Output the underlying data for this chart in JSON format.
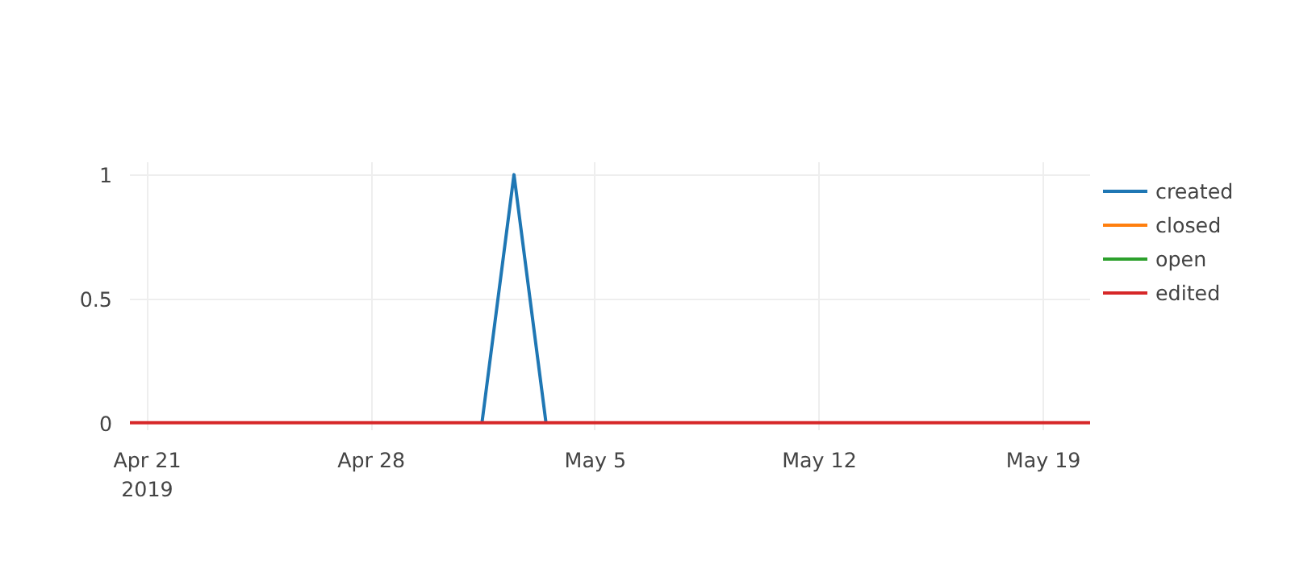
{
  "chart_data": {
    "type": "line",
    "x": [
      "2019-04-20T11:00",
      "2019-04-21T11:00",
      "2019-04-22T11:00",
      "2019-04-23T11:00",
      "2019-04-24T11:00",
      "2019-04-25T11:00",
      "2019-04-26T11:00",
      "2019-04-27T11:00",
      "2019-04-28T11:00",
      "2019-04-29T11:00",
      "2019-04-30T11:00",
      "2019-05-01T11:00",
      "2019-05-02T11:00",
      "2019-05-03T11:00",
      "2019-05-04T11:00",
      "2019-05-05T11:00",
      "2019-05-06T11:00",
      "2019-05-07T11:00",
      "2019-05-08T11:00",
      "2019-05-09T11:00",
      "2019-05-10T11:00",
      "2019-05-11T11:00",
      "2019-05-12T11:00",
      "2019-05-13T11:00",
      "2019-05-14T11:00",
      "2019-05-15T11:00",
      "2019-05-16T11:00",
      "2019-05-17T11:00",
      "2019-05-18T11:00",
      "2019-05-19T11:00",
      "2019-05-20T11:00"
    ],
    "series": [
      {
        "name": "created",
        "color": "#1f77b4",
        "values": [
          null,
          null,
          null,
          null,
          null,
          null,
          null,
          null,
          null,
          null,
          null,
          0,
          1,
          0,
          null,
          null,
          null,
          null,
          null,
          null,
          null,
          null,
          null,
          null,
          null,
          null,
          null,
          null,
          null,
          null,
          null
        ]
      },
      {
        "name": "closed",
        "color": "#ff7f0e",
        "values": [
          null,
          null,
          null,
          null,
          null,
          null,
          null,
          null,
          null,
          null,
          null,
          null,
          null,
          null,
          null,
          null,
          null,
          null,
          null,
          null,
          null,
          null,
          null,
          null,
          null,
          null,
          null,
          null,
          null,
          null,
          null
        ]
      },
      {
        "name": "open",
        "color": "#2ca02c",
        "values": [
          null,
          null,
          null,
          null,
          null,
          null,
          null,
          null,
          null,
          null,
          null,
          null,
          null,
          null,
          null,
          null,
          null,
          null,
          null,
          null,
          null,
          null,
          null,
          null,
          null,
          null,
          null,
          null,
          null,
          null,
          null
        ]
      },
      {
        "name": "edited",
        "color": "#d62728",
        "values": [
          0,
          0,
          0,
          0,
          0,
          0,
          0,
          0,
          0,
          0,
          0,
          0,
          0,
          0,
          0,
          0,
          0,
          0,
          0,
          0,
          0,
          0,
          0,
          0,
          0,
          0,
          0,
          0,
          0,
          0,
          0
        ]
      }
    ],
    "xlim": [
      "2019-04-20T11:00",
      "2019-05-20T11:00"
    ],
    "xticks": [
      {
        "value": "2019-04-21",
        "label": "Apr 21\n2019"
      },
      {
        "value": "2019-04-28",
        "label": "Apr 28"
      },
      {
        "value": "2019-05-05",
        "label": "May 5"
      },
      {
        "value": "2019-05-12",
        "label": "May 12"
      },
      {
        "value": "2019-05-19",
        "label": "May 19"
      }
    ],
    "ylim": [
      -0.03,
      1.05
    ],
    "yticks": [
      0,
      0.5,
      1
    ],
    "grid": true,
    "legend": "top right",
    "line_style": "solid"
  }
}
